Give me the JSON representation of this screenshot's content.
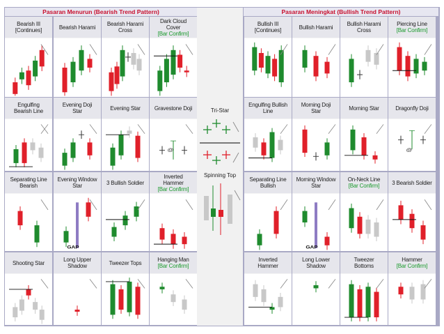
{
  "bearish_title": "Pasaran Menurun (Bearish Trend Pattern)",
  "bullish_title": "Pasaran Meningkat (Bullish Trend Pattern)",
  "center": {
    "tri_star": "Tri-Star",
    "spinning_top": "Spinning Top"
  },
  "colors": {
    "bull": "#1f8b2e",
    "bear": "#e0202a",
    "unknown": "#c8c8c8",
    "frame": "#a9a9c5",
    "title_text": "#c8102e",
    "confirm": "#1a9a2c"
  },
  "bearish": [
    [
      {
        "lines": [
          "Bearish III",
          "[Continues]"
        ],
        "sub": "",
        "candles": [
          [
            "r",
            95,
            75
          ],
          [
            "g",
            70,
            58
          ],
          [
            "r",
            80,
            55
          ],
          [
            "g",
            65,
            38
          ],
          [
            "r",
            48,
            20
          ]
        ],
        "arrows": [
          "dn"
        ]
      },
      {
        "lines": [
          "Bearish Harami"
        ],
        "sub": "",
        "candles": [
          [
            "r",
            92,
            50
          ],
          [
            "g",
            75,
            40
          ],
          [
            "g",
            55,
            20
          ],
          [
            "r",
            50,
            35
          ]
        ],
        "arrows": [
          "dn"
        ]
      },
      {
        "lines": [
          "Bearish Harami",
          "Cross"
        ],
        "sub": "",
        "candles": [
          [
            "r",
            90,
            58
          ],
          [
            "r",
            78,
            48
          ],
          [
            "g",
            65,
            20
          ],
          [
            "x",
            32
          ],
          [
            "u",
            45,
            25
          ],
          [
            "u",
            55,
            35
          ]
        ],
        "arrows": [
          "dn"
        ],
        "q": true
      },
      {
        "lines": [
          "Dark Cloud",
          "Cover"
        ],
        "sub": "[Bar Confirm]",
        "candles": [
          [
            "g",
            90,
            55
          ],
          [
            "g",
            75,
            35
          ],
          [
            "g",
            62,
            20
          ],
          [
            "r",
            50,
            28
          ],
          [
            "r",
            58,
            55
          ]
        ],
        "arrows": [
          "dn"
        ],
        "hline": 30
      }
    ],
    [
      {
        "lines": [
          "Engulfing",
          "Bearish Line"
        ],
        "sub": "",
        "candles": [
          [
            "g",
            85,
            58
          ],
          [
            "r",
            85,
            45
          ],
          [
            "u",
            60,
            45
          ],
          [
            "u",
            75,
            55
          ]
        ],
        "arrows": [
          "dn",
          "up"
        ],
        "hline": 92
      },
      {
        "lines": [
          "Evening Doji",
          "Star"
        ],
        "sub": "",
        "candles": [
          [
            "g",
            90,
            65
          ],
          [
            "g",
            75,
            45
          ],
          [
            "x",
            30
          ],
          [
            "r",
            45,
            70
          ]
        ],
        "arrows": [
          "dn"
        ]
      },
      {
        "lines": [
          "Evening Star"
        ],
        "sub": "",
        "candles": [
          [
            "g",
            90,
            55
          ],
          [
            "g",
            70,
            30
          ],
          [
            "u",
            28,
            22
          ],
          [
            "r",
            32,
            75
          ]
        ],
        "arrows": [
          "dn"
        ],
        "hline": 30
      },
      {
        "lines": [
          "Gravestone Doji"
        ],
        "sub": "",
        "candles": [
          [
            "x",
            60
          ],
          [
            "t",
            60
          ],
          [
            "x",
            60
          ]
        ],
        "arrows": [
          "dn"
        ],
        "symbol": "@"
      }
    ],
    [
      {
        "lines": [
          "Separating Line",
          "Bearish"
        ],
        "sub": "",
        "candles": [
          [
            "r",
            30,
            55
          ],
          [
            "g",
            55,
            85
          ]
        ],
        "arrows": [
          "dn"
        ]
      },
      {
        "lines": [
          "Evening Window",
          "Star"
        ],
        "sub": "",
        "candles": [
          [
            "g",
            85,
            65
          ],
          [
            "gap",
            15,
            95
          ],
          [
            "r",
            15,
            40
          ]
        ],
        "arrows": [
          "dn"
        ],
        "caption": "GAP"
      },
      {
        "lines": [
          "3 Bullish Soldier"
        ],
        "sub": "",
        "candles": [
          [
            "g",
            75,
            58
          ],
          [
            "g",
            55,
            38
          ],
          [
            "g",
            40,
            22
          ]
        ],
        "arrows": [
          "up"
        ],
        "hline": 45
      },
      {
        "lines": [
          "Inverted",
          "Hammer"
        ],
        "sub": "[Bar Confirm]",
        "candles": [
          [
            "r",
            60,
            80
          ],
          [
            "r",
            70,
            88
          ],
          [
            "r",
            75,
            88
          ]
        ],
        "arrows": [
          "dn"
        ],
        "hline": 88
      }
    ],
    [
      {
        "lines": [
          "Shooting Star"
        ],
        "sub": "",
        "candles": [
          [
            "u",
            65,
            85
          ],
          [
            "u",
            50,
            72
          ],
          [
            "r",
            30,
            42
          ],
          [
            "u",
            55,
            70
          ],
          [
            "u",
            70,
            90
          ]
        ],
        "arrows": [
          "dn"
        ],
        "hline": 30,
        "q": true
      },
      {
        "lines": [
          "Long Upper",
          "Shadow"
        ],
        "sub": "",
        "candles": [
          [
            "r",
            70,
            74
          ]
        ],
        "arrows": [
          "dn"
        ]
      },
      {
        "lines": [
          "Tweezer Tops"
        ],
        "sub": "",
        "candles": [
          [
            "g",
            20,
            80
          ],
          [
            "r",
            30,
            70
          ],
          [
            "g",
            15,
            75
          ],
          [
            "r",
            25,
            80
          ]
        ],
        "arrows": [
          "dn"
        ],
        "hline": 15
      },
      {
        "lines": [
          "Hanging Man"
        ],
        "sub": "[Bar Confirm]",
        "candles": [
          [
            "g",
            25,
            30
          ],
          [
            "u",
            40,
            55
          ],
          [
            "u",
            50,
            70
          ]
        ],
        "arrows": [
          "dn"
        ],
        "q": true
      }
    ]
  ],
  "bullish": [
    [
      {
        "lines": [
          "Bullish III",
          "[Continues]"
        ],
        "sub": "",
        "candles": [
          [
            "g",
            15,
            55
          ],
          [
            "r",
            25,
            50
          ],
          [
            "g",
            30,
            60
          ],
          [
            "r",
            35,
            65
          ],
          [
            "g",
            20,
            75
          ]
        ],
        "arrows": [
          "up"
        ]
      },
      {
        "lines": [
          "Bullish Harami"
        ],
        "sub": "",
        "candles": [
          [
            "g",
            20,
            50
          ],
          [
            "r",
            30,
            65
          ],
          [
            "r",
            40,
            60
          ]
        ],
        "arrows": [
          "up"
        ]
      },
      {
        "lines": [
          "Bullish Harami",
          "Cross"
        ],
        "sub": "",
        "candles": [
          [
            "g",
            35,
            75
          ],
          [
            "x",
            62
          ],
          [
            "u",
            20,
            40
          ],
          [
            "u",
            25,
            45
          ]
        ],
        "arrows": [
          "up"
        ]
      },
      {
        "lines": [
          "Piercing Line"
        ],
        "sub": "[Bar Confirm]",
        "candles": [
          [
            "r",
            15,
            55
          ],
          [
            "r",
            30,
            65
          ],
          [
            "g",
            35,
            60
          ],
          [
            "g",
            40,
            55
          ]
        ],
        "arrows": [
          "up"
        ],
        "hline": 55
      }
    ],
    [
      {
        "lines": [
          "Engulfing Bullish",
          "Line"
        ],
        "sub": "",
        "candles": [
          [
            "u",
            35,
            55
          ],
          [
            "r",
            45,
            70
          ],
          [
            "g",
            25,
            75
          ],
          [
            "u",
            40,
            60
          ]
        ],
        "arrows": [
          "up"
        ],
        "hline": 75
      },
      {
        "lines": [
          "Morning Doji",
          "Star"
        ],
        "sub": "",
        "candles": [
          [
            "r",
            20,
            65
          ],
          [
            "x",
            72
          ],
          [
            "g",
            45,
            70
          ]
        ],
        "arrows": [
          "up"
        ]
      },
      {
        "lines": [
          "Morning Star"
        ],
        "sub": "",
        "candles": [
          [
            "g",
            20,
            60
          ],
          [
            "r",
            35,
            70
          ],
          [
            "r",
            70,
            78
          ]
        ],
        "arrows": [
          "up"
        ],
        "hline": 70
      },
      {
        "lines": [
          "Dragonfly Doji"
        ],
        "sub": "",
        "candles": [
          [
            "x",
            40
          ],
          [
            "t",
            40
          ],
          [
            "x",
            40
          ]
        ],
        "arrows": [
          "up"
        ],
        "symbol": "@"
      }
    ],
    [
      {
        "lines": [
          "Separating Line",
          "Bullish"
        ],
        "sub": "",
        "candles": [
          [
            "g",
            70,
            90
          ],
          [
            "r",
            30,
            70
          ]
        ],
        "arrows": [
          "up"
        ]
      },
      {
        "lines": [
          "Morning Window",
          "Star"
        ],
        "sub": "",
        "candles": [
          [
            "g",
            30,
            50
          ],
          [
            "gap",
            15,
            95
          ],
          [
            "r",
            75,
            90
          ]
        ],
        "arrows": [
          "up"
        ],
        "caption": "GAP"
      },
      {
        "lines": [
          "On-Neck Line"
        ],
        "sub": "[Bar Confirm]",
        "candles": [
          [
            "g",
            25,
            60
          ],
          [
            "r",
            40,
            70
          ],
          [
            "u",
            45,
            70
          ],
          [
            "u",
            50,
            75
          ]
        ],
        "arrows": [
          "up"
        ],
        "q": true
      },
      {
        "lines": [
          "3 Bearish Soldier"
        ],
        "sub": "",
        "candles": [
          [
            "r",
            20,
            45
          ],
          [
            "r",
            35,
            60
          ],
          [
            "r",
            55,
            80
          ]
        ],
        "arrows": [
          "dn"
        ],
        "hline": 45
      }
    ],
    [
      {
        "lines": [
          "Inverted",
          "Hammer"
        ],
        "sub": "",
        "candles": [
          [
            "u",
            20,
            45
          ],
          [
            "u",
            30,
            55
          ],
          [
            "g",
            65,
            70
          ],
          [
            "u",
            45,
            65
          ]
        ],
        "arrows": [
          "up"
        ],
        "hline": 65
      },
      {
        "lines": [
          "Long Lower",
          "Shadow"
        ],
        "sub": "",
        "candles": [
          [
            "g",
            22,
            28
          ]
        ],
        "arrows": [
          "up"
        ]
      },
      {
        "lines": [
          "Tweezer",
          "Bottoms"
        ],
        "sub": "",
        "candles": [
          [
            "g",
            20,
            85
          ],
          [
            "r",
            30,
            85
          ],
          [
            "g",
            25,
            85
          ],
          [
            "r",
            35,
            85
          ]
        ],
        "arrows": [
          "up"
        ],
        "hline": 85
      },
      {
        "lines": [
          "Hammer"
        ],
        "sub": "[Bar Confirm]",
        "candles": [
          [
            "r",
            25,
            40
          ],
          [
            "u",
            25,
            50
          ],
          [
            "u",
            20,
            50
          ]
        ],
        "arrows": [
          "up"
        ],
        "q": true
      }
    ]
  ]
}
